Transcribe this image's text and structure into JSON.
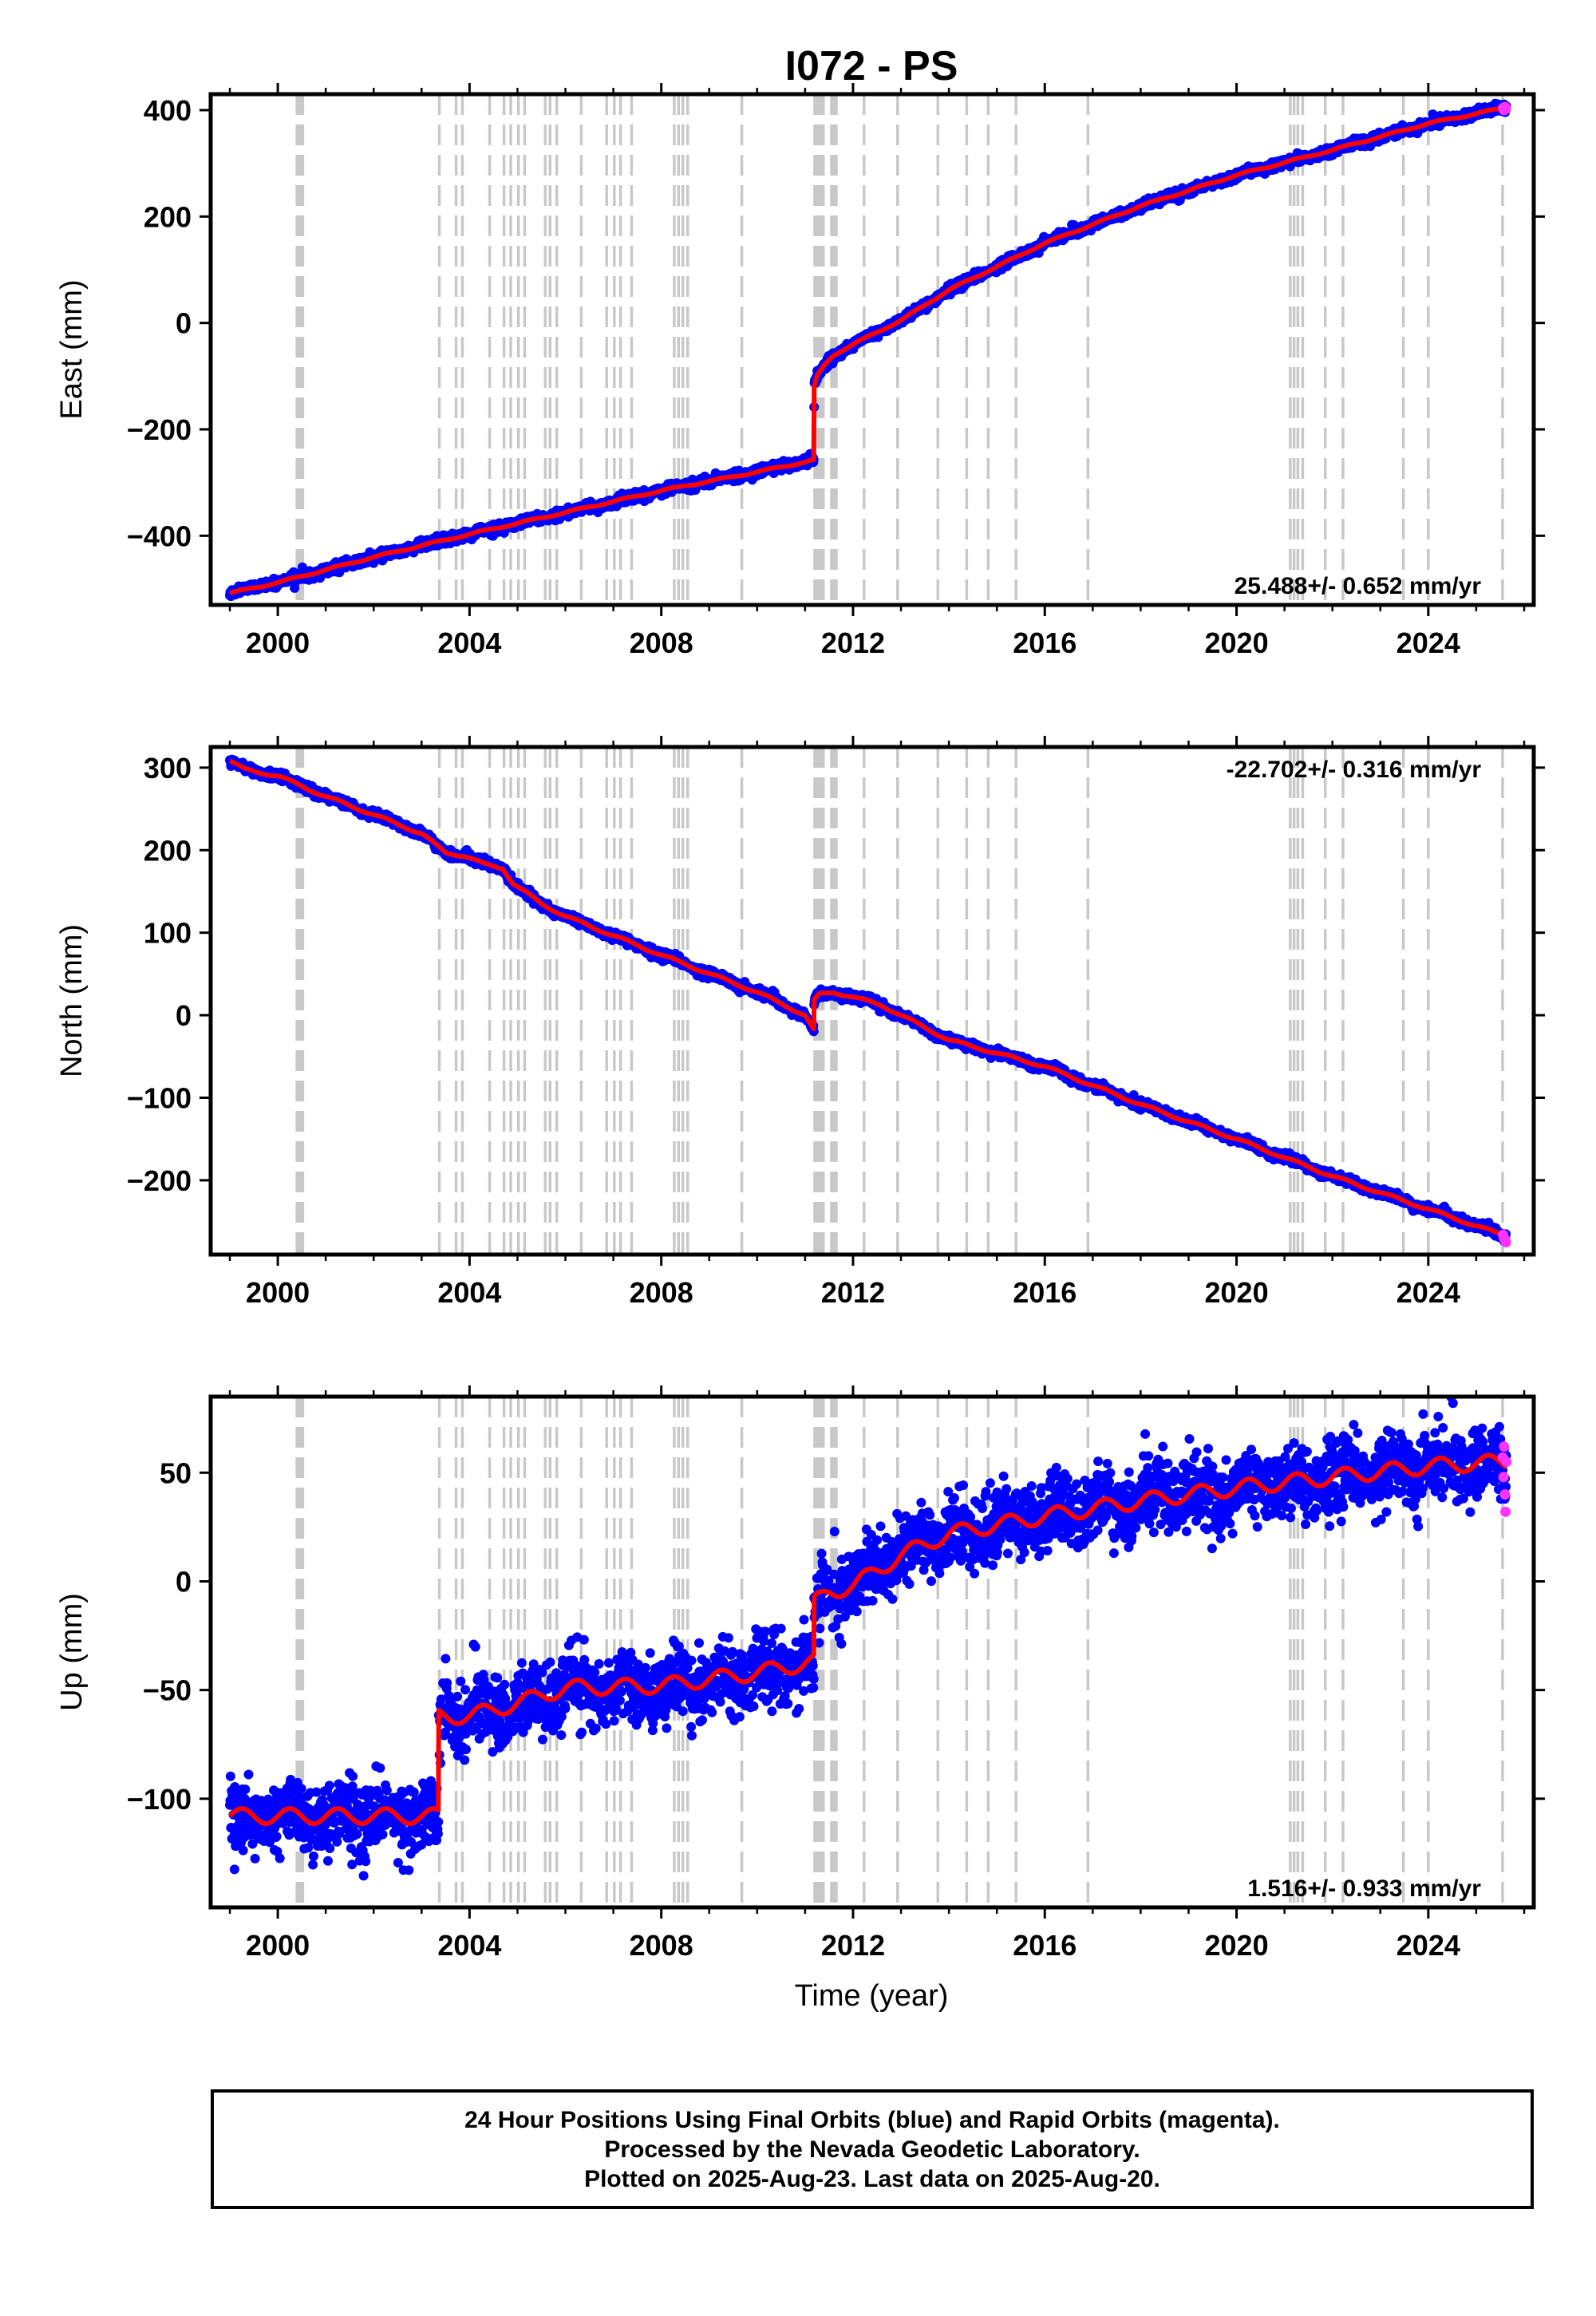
{
  "title": "I072 - PS",
  "xlabel": "Time (year)",
  "colors": {
    "final": "#0000ff",
    "rapid": "#ff33ff",
    "model": "#ff0000",
    "event": "#c8c8c8"
  },
  "footer": [
    "24 Hour Positions Using Final Orbits (blue) and Rapid Orbits (magenta).",
    "Processed by the Nevada Geodetic Laboratory.",
    "Plotted on 2025-Aug-23. Last data on 2025-Aug-20."
  ],
  "chart_data": [
    {
      "type": "scatter",
      "ylabel": "East (mm)",
      "rate_label": "25.488+/- 0.652 mm/yr",
      "rate_position": "bottom-right",
      "xlim": [
        1998.6,
        2026.2
      ],
      "ylim": [
        -530,
        430
      ],
      "x_ticks": [
        2000,
        2004,
        2008,
        2012,
        2016,
        2020,
        2024
      ],
      "y_ticks": [
        -400,
        -200,
        0,
        200,
        400
      ],
      "x_tick_labels": [
        "2000",
        "2004",
        "2008",
        "2012",
        "2016",
        "2020",
        "2024"
      ],
      "y_tick_labels": [
        "−400",
        "−200",
        "0",
        "200",
        "400"
      ],
      "start": 1999.0,
      "end": 2025.63,
      "scatter_sd": 4,
      "seasonal_amp": 1.5,
      "model_x": [
        1999.0,
        2000.0,
        2002.0,
        2004.0,
        2006.0,
        2008.0,
        2010.0,
        2011.18,
        2011.19,
        2011.25,
        2011.4,
        2011.6,
        2012.0,
        2013.0,
        2014.0,
        2016.0,
        2018.0,
        2020.0,
        2022.0,
        2024.0,
        2025.63
      ],
      "model_y": [
        -508,
        -488,
        -440,
        -397,
        -356,
        -315,
        -280,
        -258,
        -120,
        -100,
        -80,
        -60,
        -40,
        5,
        62,
        150,
        220,
        278,
        325,
        375,
        405
      ],
      "rapid_x": [
        2025.56,
        2025.58,
        2025.6,
        2025.62
      ],
      "rapid_y": [
        404,
        400,
        406,
        402
      ]
    },
    {
      "type": "scatter",
      "ylabel": "North (mm)",
      "rate_label": "-22.702+/- 0.316 mm/yr",
      "rate_position": "top-right",
      "xlim": [
        1998.6,
        2026.2
      ],
      "ylim": [
        -290,
        325
      ],
      "x_ticks": [
        2000,
        2004,
        2008,
        2012,
        2016,
        2020,
        2024
      ],
      "y_ticks": [
        -200,
        -100,
        0,
        100,
        200,
        300
      ],
      "x_tick_labels": [
        "2000",
        "2004",
        "2008",
        "2012",
        "2016",
        "2020",
        "2024"
      ],
      "y_tick_labels": [
        "−200",
        "−100",
        "0",
        "100",
        "200",
        "300"
      ],
      "start": 1999.0,
      "end": 2025.63,
      "scatter_sd": 2.5,
      "seasonal_amp": 1.5,
      "model_x": [
        1999.0,
        1999.3,
        2000.0,
        2001.0,
        2002.0,
        2003.0,
        2003.5,
        2003.9,
        2004.3,
        2004.7,
        2004.9,
        2005.5,
        2006.0,
        2008.0,
        2010.0,
        2011.0,
        2011.18,
        2011.19,
        2011.3,
        2011.6,
        2012.0,
        2012.6,
        2013.0,
        2014.0,
        2016.0,
        2018.0,
        2020.0,
        2022.0,
        2024.0,
        2025.63
      ],
      "model_y": [
        308,
        298,
        290,
        265,
        243,
        220,
        197,
        193,
        183,
        178,
        160,
        135,
        120,
        73,
        28,
        0,
        -18,
        18,
        25,
        28,
        22,
        12,
        0,
        -30,
        -62,
        -108,
        -150,
        -195,
        -235,
        -268
      ],
      "rapid_x": [
        2025.56,
        2025.58,
        2025.6,
        2025.62
      ],
      "rapid_y": [
        -266,
        -270,
        -272,
        -275
      ]
    },
    {
      "type": "scatter",
      "ylabel": "Up (mm)",
      "rate_label": "1.516+/- 0.933 mm/yr",
      "rate_position": "bottom-right",
      "xlim": [
        1998.6,
        2026.2
      ],
      "ylim": [
        -150,
        85
      ],
      "x_ticks": [
        2000,
        2004,
        2008,
        2012,
        2016,
        2020,
        2024
      ],
      "y_ticks": [
        -100,
        -50,
        0,
        50
      ],
      "x_tick_labels": [
        "2000",
        "2004",
        "2008",
        "2012",
        "2016",
        "2020",
        "2024"
      ],
      "y_tick_labels": [
        "−100",
        "−50",
        "0",
        "50"
      ],
      "start": 1999.0,
      "end": 2025.63,
      "scatter_sd": 8,
      "seasonal_amp": 3.5,
      "model_x": [
        1999.0,
        2002.0,
        2003.35,
        2003.36,
        2004.0,
        2005.0,
        2006.0,
        2008.0,
        2010.0,
        2011.18,
        2011.19,
        2011.5,
        2012.0,
        2013.0,
        2014.0,
        2016.0,
        2018.0,
        2020.0,
        2022.0,
        2024.0,
        2025.63
      ],
      "model_y": [
        -108,
        -108,
        -108,
        -62,
        -62,
        -56,
        -49,
        -48,
        -42,
        -37,
        -10,
        -5,
        -2,
        12,
        22,
        30,
        37,
        43,
        48,
        53,
        55
      ],
      "rapid_x": [
        2025.55,
        2025.57,
        2025.58,
        2025.6,
        2025.61,
        2025.63
      ],
      "rapid_y": [
        57,
        48,
        62,
        40,
        32,
        55
      ]
    }
  ],
  "events": {
    "dense": [
      2000.4,
      2000.42,
      2000.44,
      2000.46,
      2000.48,
      2000.5,
      2000.52,
      2011.2,
      2011.22,
      2011.24,
      2011.26,
      2011.3,
      2011.34,
      2011.38,
      2011.55,
      2011.6,
      2011.65
    ],
    "single": [
      2003.37,
      2003.72,
      2003.85,
      2004.42,
      2004.72,
      2004.86,
      2005.02,
      2005.15,
      2005.58,
      2005.68,
      2005.82,
      2006.33,
      2006.86,
      2007.02,
      2007.15,
      2007.38,
      2008.27,
      2008.36,
      2008.45,
      2008.55,
      2009.68,
      2012.23,
      2012.93,
      2013.77,
      2014.37,
      2014.82,
      2015.4,
      2016.9,
      2021.12,
      2021.2,
      2021.28,
      2021.38,
      2021.85,
      2022.22,
      2023.48,
      2024.0,
      2025.55
    ]
  }
}
